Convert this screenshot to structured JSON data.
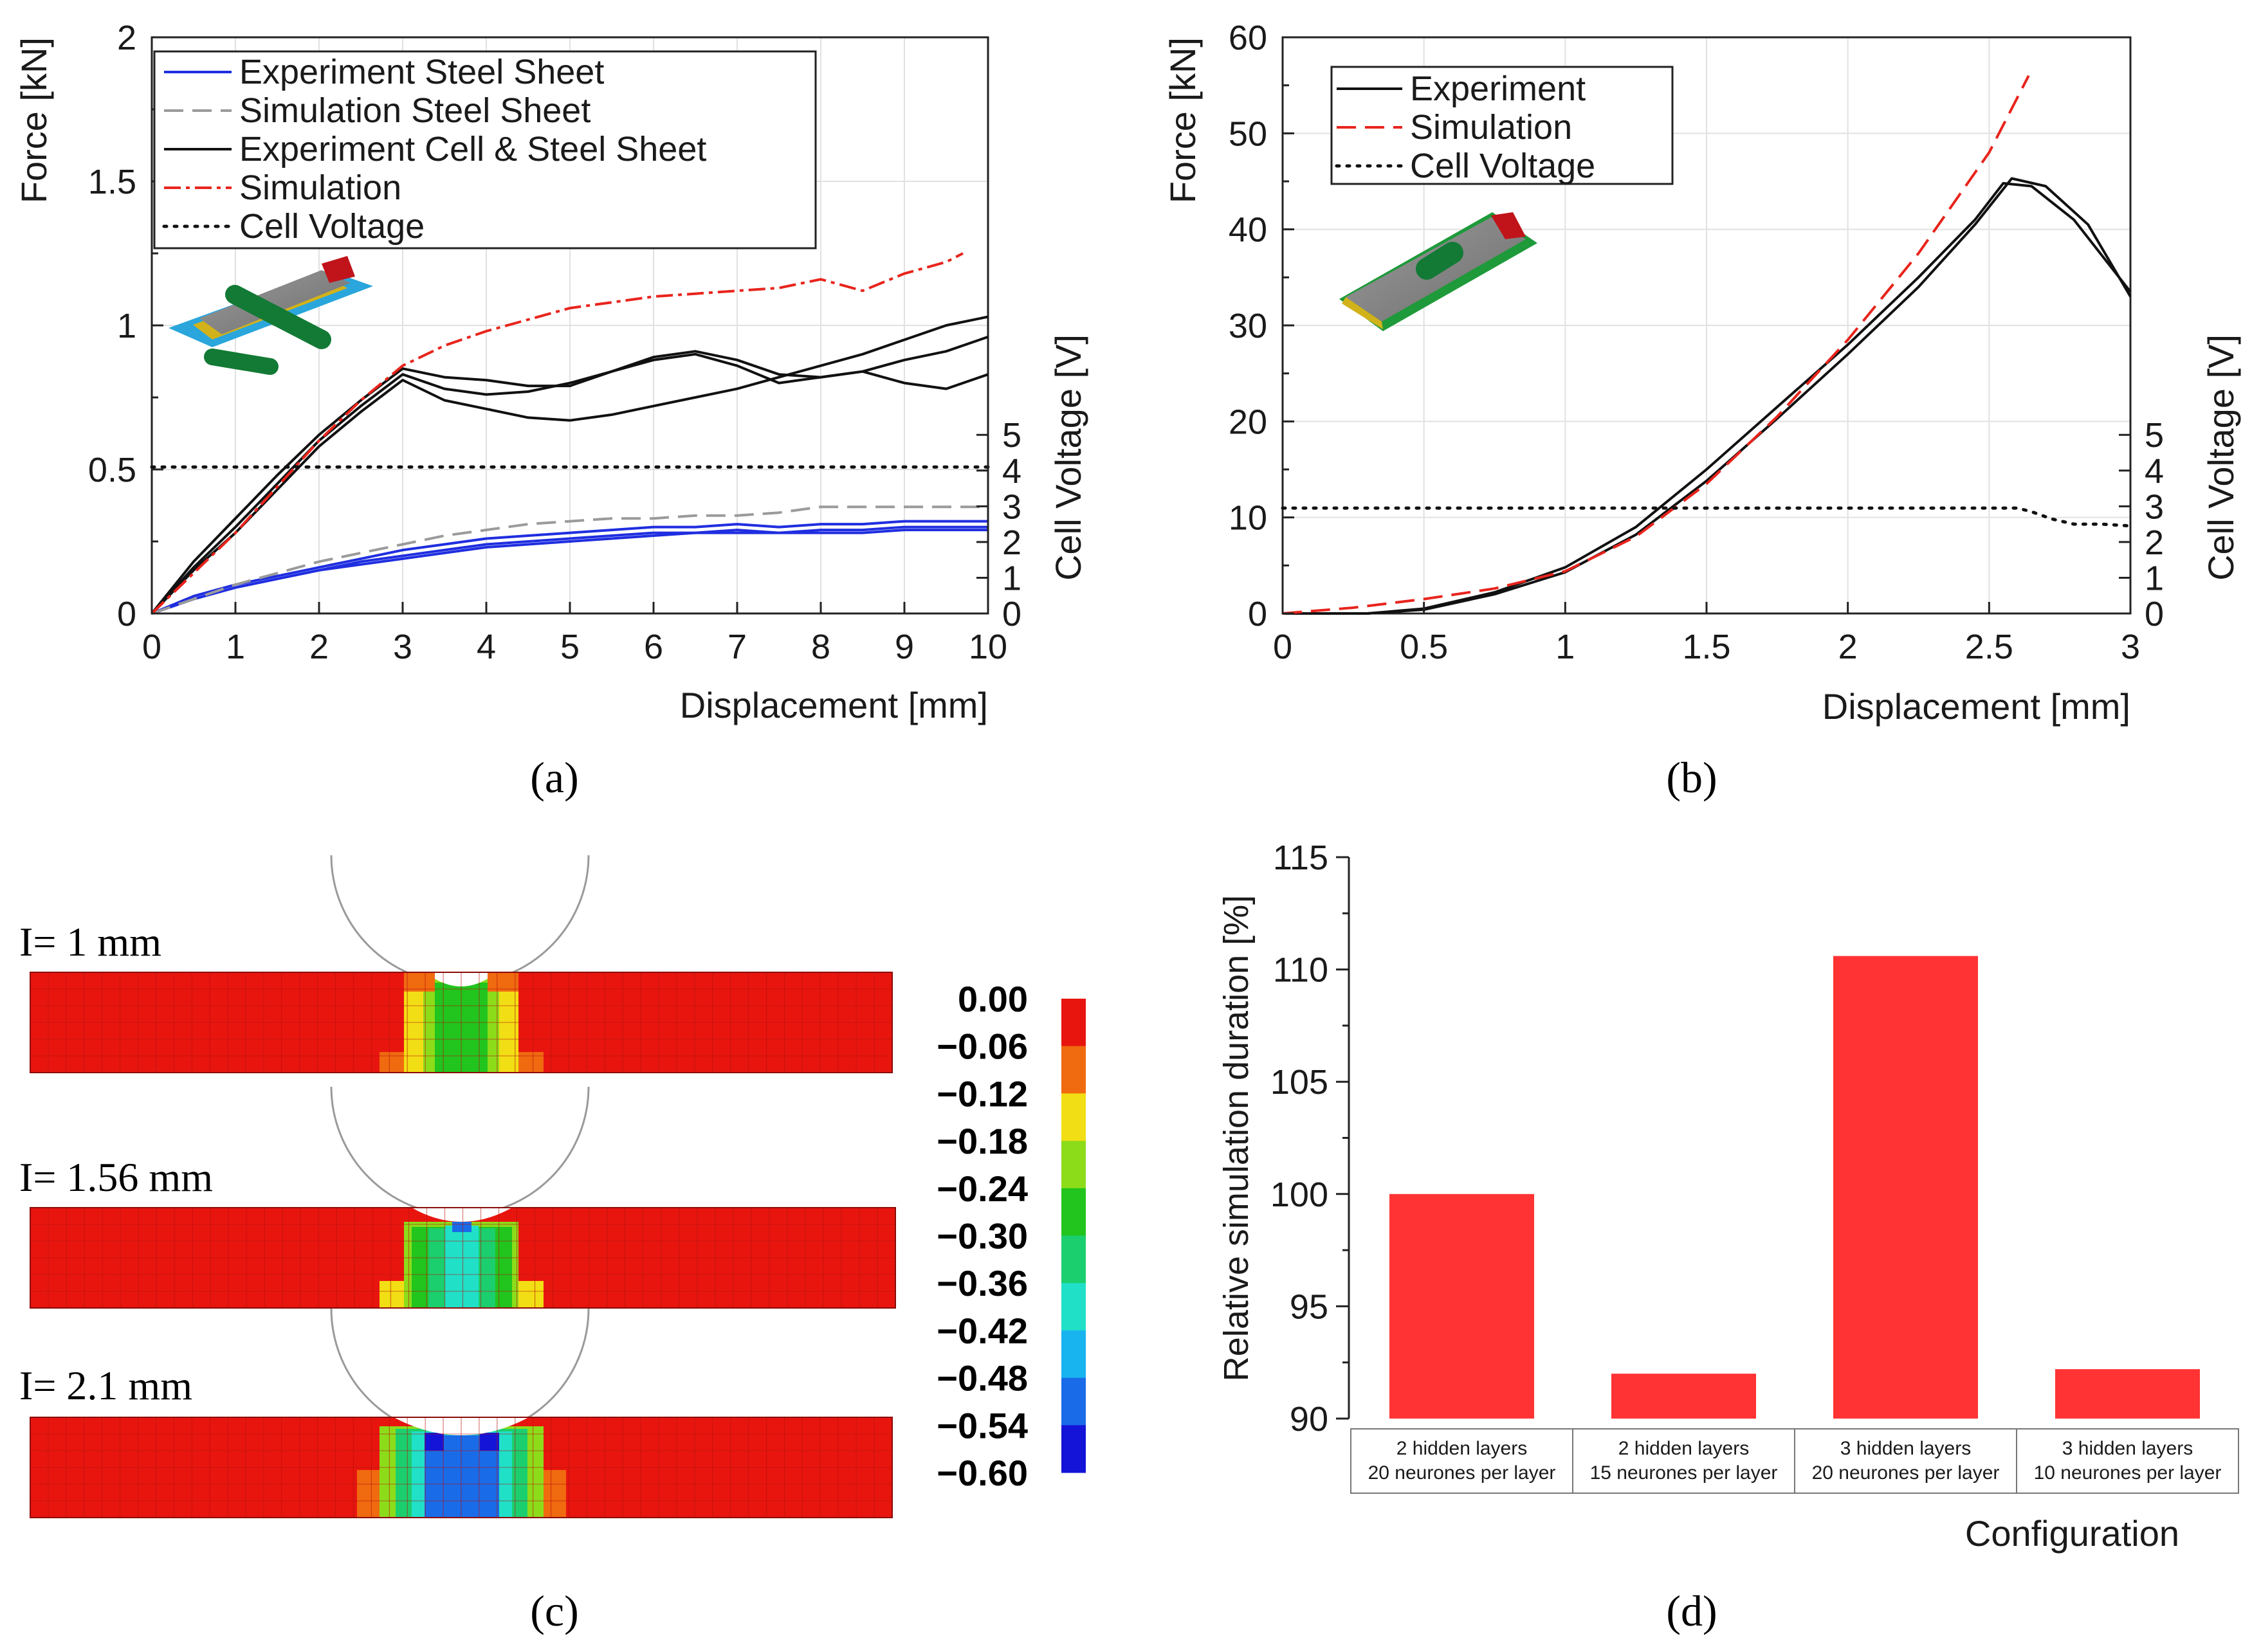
{
  "panel_labels": {
    "a": "(a)",
    "b": "(b)",
    "c": "(c)",
    "d": "(d)"
  },
  "chart_data": [
    {
      "panel": "a",
      "type": "line",
      "xlabel": "Displacement [mm]",
      "ylabel": "Force [kN]",
      "y2label": "Cell Voltage [V]",
      "xlim": [
        0,
        10
      ],
      "ylim": [
        0,
        2
      ],
      "y2lim": [
        0,
        5
      ],
      "xticks": [
        "0",
        "1",
        "2",
        "3",
        "4",
        "5",
        "6",
        "7",
        "8",
        "9",
        "10"
      ],
      "yticks": [
        "0",
        "0.5",
        "1",
        "1.5",
        "2"
      ],
      "y2ticks": [
        "0",
        "1",
        "2",
        "3",
        "4",
        "5"
      ],
      "grid": true,
      "legend_position": "top-left",
      "series": [
        {
          "name": "Experiment Steel Sheet",
          "color": "#1f2ee0",
          "style": "solid",
          "runs": [
            {
              "x": [
                0,
                0.5,
                1,
                1.5,
                2,
                2.5,
                3,
                3.5,
                4,
                4.5,
                5,
                5.5,
                6,
                6.5,
                7,
                7.5,
                8,
                8.5,
                9,
                9.5,
                10
              ],
              "y": [
                0,
                0.06,
                0.1,
                0.13,
                0.16,
                0.19,
                0.22,
                0.24,
                0.26,
                0.27,
                0.28,
                0.29,
                0.3,
                0.3,
                0.31,
                0.3,
                0.31,
                0.31,
                0.32,
                0.32,
                0.32
              ]
            },
            {
              "x": [
                0,
                0.5,
                1,
                1.5,
                2,
                2.5,
                3,
                3.5,
                4,
                4.5,
                5,
                5.5,
                6,
                6.5,
                7,
                7.5,
                8,
                8.5,
                9,
                9.5,
                10
              ],
              "y": [
                0,
                0.05,
                0.09,
                0.12,
                0.15,
                0.18,
                0.2,
                0.22,
                0.24,
                0.25,
                0.26,
                0.27,
                0.28,
                0.28,
                0.29,
                0.28,
                0.29,
                0.29,
                0.3,
                0.3,
                0.3
              ]
            },
            {
              "x": [
                0,
                0.5,
                1,
                1.5,
                2,
                2.5,
                3,
                3.5,
                4,
                4.5,
                5,
                5.5,
                6,
                6.5,
                7,
                7.5,
                8,
                8.5,
                9,
                9.5,
                10
              ],
              "y": [
                0,
                0.05,
                0.09,
                0.12,
                0.15,
                0.17,
                0.19,
                0.21,
                0.23,
                0.24,
                0.25,
                0.26,
                0.27,
                0.28,
                0.28,
                0.28,
                0.28,
                0.28,
                0.29,
                0.29,
                0.29
              ]
            }
          ]
        },
        {
          "name": "Simulation Steel Sheet",
          "color": "#9a9a9a",
          "style": "dash",
          "runs": [
            {
              "x": [
                0,
                0.5,
                1,
                1.5,
                2,
                2.5,
                3,
                3.5,
                4,
                4.5,
                5,
                5.5,
                6,
                6.5,
                7,
                7.5,
                8,
                8.5,
                9,
                9.5,
                10
              ],
              "y": [
                0,
                0.05,
                0.1,
                0.14,
                0.18,
                0.21,
                0.24,
                0.27,
                0.29,
                0.31,
                0.32,
                0.33,
                0.33,
                0.34,
                0.34,
                0.35,
                0.37,
                0.37,
                0.37,
                0.37,
                0.37
              ]
            }
          ]
        },
        {
          "name": "Experiment Cell & Steel Sheet",
          "color": "#111111",
          "style": "solid",
          "runs": [
            {
              "x": [
                0,
                0.5,
                1,
                1.5,
                2,
                2.5,
                3,
                3.5,
                4,
                4.5,
                5,
                5.5,
                6,
                6.5,
                7,
                7.5,
                8,
                8.5,
                9,
                9.5,
                10
              ],
              "y": [
                0,
                0.18,
                0.33,
                0.48,
                0.62,
                0.74,
                0.85,
                0.82,
                0.81,
                0.79,
                0.79,
                0.84,
                0.89,
                0.91,
                0.88,
                0.83,
                0.82,
                0.84,
                0.88,
                0.91,
                0.96
              ]
            },
            {
              "x": [
                0,
                0.5,
                1,
                1.5,
                2,
                2.5,
                3,
                3.5,
                4,
                4.5,
                5,
                5.5,
                6,
                6.5,
                7,
                7.5,
                8,
                8.5,
                9,
                9.5,
                10
              ],
              "y": [
                0,
                0.16,
                0.3,
                0.45,
                0.6,
                0.72,
                0.83,
                0.78,
                0.76,
                0.77,
                0.8,
                0.84,
                0.88,
                0.9,
                0.86,
                0.8,
                0.82,
                0.84,
                0.8,
                0.78,
                0.83
              ]
            },
            {
              "x": [
                0,
                0.5,
                1,
                1.5,
                2,
                2.5,
                3,
                3.5,
                4,
                4.5,
                5,
                5.5,
                6,
                6.5,
                7,
                7.5,
                8,
                8.5,
                9,
                9.5,
                10
              ],
              "y": [
                0,
                0.15,
                0.28,
                0.43,
                0.58,
                0.7,
                0.81,
                0.74,
                0.71,
                0.68,
                0.67,
                0.69,
                0.72,
                0.75,
                0.78,
                0.82,
                0.86,
                0.9,
                0.95,
                1.0,
                1.03
              ]
            }
          ]
        },
        {
          "name": "Simulation",
          "color": "#e8241c",
          "style": "dashdot",
          "runs": [
            {
              "x": [
                0,
                0.5,
                1,
                1.5,
                2,
                2.5,
                3,
                3.5,
                4,
                4.5,
                5,
                5.5,
                6,
                6.5,
                7,
                7.5,
                8,
                8.5,
                9,
                9.5,
                9.7
              ],
              "y": [
                0,
                0.14,
                0.28,
                0.44,
                0.6,
                0.74,
                0.86,
                0.93,
                0.98,
                1.02,
                1.06,
                1.08,
                1.1,
                1.11,
                1.12,
                1.13,
                1.16,
                1.12,
                1.18,
                1.22,
                1.25
              ]
            }
          ]
        },
        {
          "name": "Cell Voltage",
          "color": "#111111",
          "style": "dot",
          "axis": "right",
          "runs": [
            {
              "x": [
                0,
                10
              ],
              "y": [
                4.1,
                4.1
              ]
            }
          ]
        }
      ]
    },
    {
      "panel": "b",
      "type": "line",
      "xlabel": "Displacement [mm]",
      "ylabel": "Force [kN]",
      "y2label": "Cell Voltage [V]",
      "xlim": [
        0,
        3
      ],
      "ylim": [
        0,
        60
      ],
      "y2lim": [
        0,
        5
      ],
      "xticks": [
        "0",
        "0.5",
        "1",
        "1.5",
        "2",
        "2.5",
        "3"
      ],
      "yticks": [
        "0",
        "10",
        "20",
        "30",
        "40",
        "50",
        "60"
      ],
      "y2ticks": [
        "0",
        "1",
        "2",
        "3",
        "4",
        "5"
      ],
      "grid": true,
      "legend_position": "top-left",
      "series": [
        {
          "name": "Experiment",
          "color": "#111111",
          "style": "solid",
          "runs": [
            {
              "x": [
                0,
                0.3,
                0.5,
                0.75,
                1,
                1.25,
                1.5,
                1.75,
                2,
                2.25,
                2.45,
                2.55,
                2.65,
                2.8,
                3.0
              ],
              "y": [
                0,
                0,
                0.5,
                2.2,
                4.8,
                9,
                15,
                21.5,
                28,
                35,
                41,
                44.8,
                44.5,
                41,
                33.5
              ]
            },
            {
              "x": [
                0,
                0.3,
                0.5,
                0.75,
                1,
                1.25,
                1.5,
                1.75,
                2,
                2.25,
                2.45,
                2.58,
                2.7,
                2.85,
                3.0
              ],
              "y": [
                0,
                0,
                0.4,
                2,
                4.3,
                8.2,
                13.8,
                20.3,
                27,
                34,
                40.5,
                45.3,
                44.5,
                40.5,
                33
              ]
            }
          ]
        },
        {
          "name": "Simulation",
          "color": "#e8241c",
          "style": "dash",
          "runs": [
            {
              "x": [
                0,
                0.25,
                0.5,
                0.75,
                1,
                1.25,
                1.5,
                1.75,
                2,
                2.25,
                2.5,
                2.64
              ],
              "y": [
                0,
                0.6,
                1.5,
                2.6,
                4.4,
                8,
                13.5,
                20.5,
                28.5,
                37.5,
                48,
                56
              ]
            }
          ]
        },
        {
          "name": "Cell Voltage",
          "color": "#111111",
          "style": "dot",
          "axis": "right",
          "runs": [
            {
              "x": [
                0,
                2.6,
                2.65,
                2.72,
                2.8,
                2.9,
                3.0
              ],
              "y": [
                2.95,
                2.95,
                2.85,
                2.65,
                2.5,
                2.5,
                2.45
              ]
            }
          ]
        }
      ]
    },
    {
      "panel": "d",
      "type": "bar",
      "xlabel": "Configuration",
      "ylabel": "Relative simulation duration [%]",
      "ylim": [
        90,
        115
      ],
      "yticks": [
        "90",
        "95",
        "100",
        "105",
        "110",
        "115"
      ],
      "categories": [
        [
          "2 hidden layers",
          "20 neurones per layer"
        ],
        [
          "2 hidden layers",
          "15 neurones per layer"
        ],
        [
          "3 hidden layers",
          "20 neurones per layer"
        ],
        [
          "3 hidden layers",
          "10 neurones per layer"
        ]
      ],
      "values": [
        100,
        92,
        110.6,
        92.2
      ],
      "bar_color": "#ff3333",
      "grid": false
    }
  ],
  "panel_c": {
    "states": [
      "I= 1 mm",
      "I= 1.56 mm",
      "I= 2.1 mm"
    ],
    "colorbar": {
      "labels": [
        "0.00",
        "−0.06",
        "−0.12",
        "−0.18",
        "−0.24",
        "−0.30",
        "−0.36",
        "−0.42",
        "−0.48",
        "−0.54",
        "−0.60"
      ],
      "colors": [
        "#e8150f",
        "#f06a10",
        "#f2de14",
        "#8ddc1a",
        "#22c41e",
        "#1ccf6e",
        "#20e0c8",
        "#18b4f0",
        "#1a6be8",
        "#1414d8"
      ]
    }
  }
}
